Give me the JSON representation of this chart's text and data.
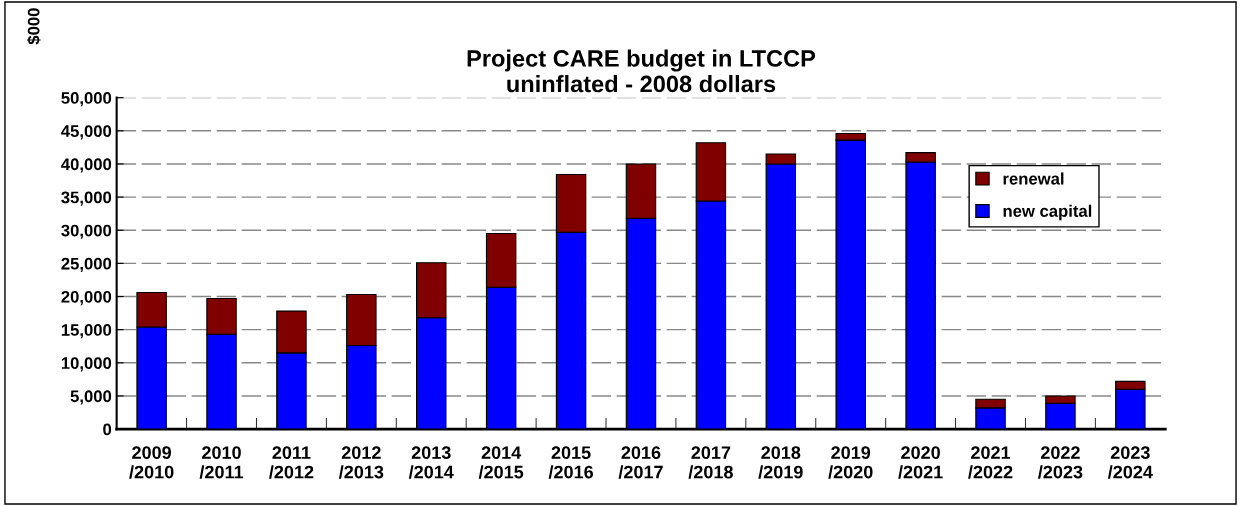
{
  "chart_data": {
    "type": "bar",
    "title": "Project CARE budget in LTCCP\nuninflated - 2008 dollars",
    "ylabel": "$000",
    "categories": [
      "2009\n/2010",
      "2010\n/2011",
      "2011\n/2012",
      "2012\n/2013",
      "2013\n/2014",
      "2014\n/2015",
      "2015\n/2016",
      "2016\n/2017",
      "2017\n/2018",
      "2018\n/2019",
      "2019\n/2020",
      "2020\n/2021",
      "2021\n/2022",
      "2022\n/2023",
      "2023\n/2024"
    ],
    "stacked": true,
    "series": [
      {
        "name": "new capital",
        "color": "#0000ff",
        "values": [
          15400,
          14300,
          11500,
          12600,
          16800,
          21400,
          29700,
          31800,
          34400,
          40000,
          43600,
          40300,
          3200,
          3900,
          6000
        ]
      },
      {
        "name": "renewal",
        "color": "#800000",
        "values": [
          5200,
          5400,
          6300,
          7700,
          8300,
          8100,
          8700,
          8200,
          8800,
          1500,
          1000,
          1400,
          1300,
          1100,
          1200
        ]
      }
    ],
    "ylim": [
      0,
      50000
    ],
    "yticks": [
      {
        "value": 0,
        "label": "0"
      },
      {
        "value": 5000,
        "label": "5,000"
      },
      {
        "value": 10000,
        "label": "10,000"
      },
      {
        "value": 15000,
        "label": "15,000"
      },
      {
        "value": 20000,
        "label": "20,000"
      },
      {
        "value": 25000,
        "label": "25,000"
      },
      {
        "value": 30000,
        "label": "30,000"
      },
      {
        "value": 35000,
        "label": "35,000"
      },
      {
        "value": 40000,
        "label": "40,000"
      },
      {
        "value": 45000,
        "label": "45,000"
      },
      {
        "value": 50000,
        "label": "50,000"
      }
    ],
    "grid": "y",
    "legend": "right"
  }
}
